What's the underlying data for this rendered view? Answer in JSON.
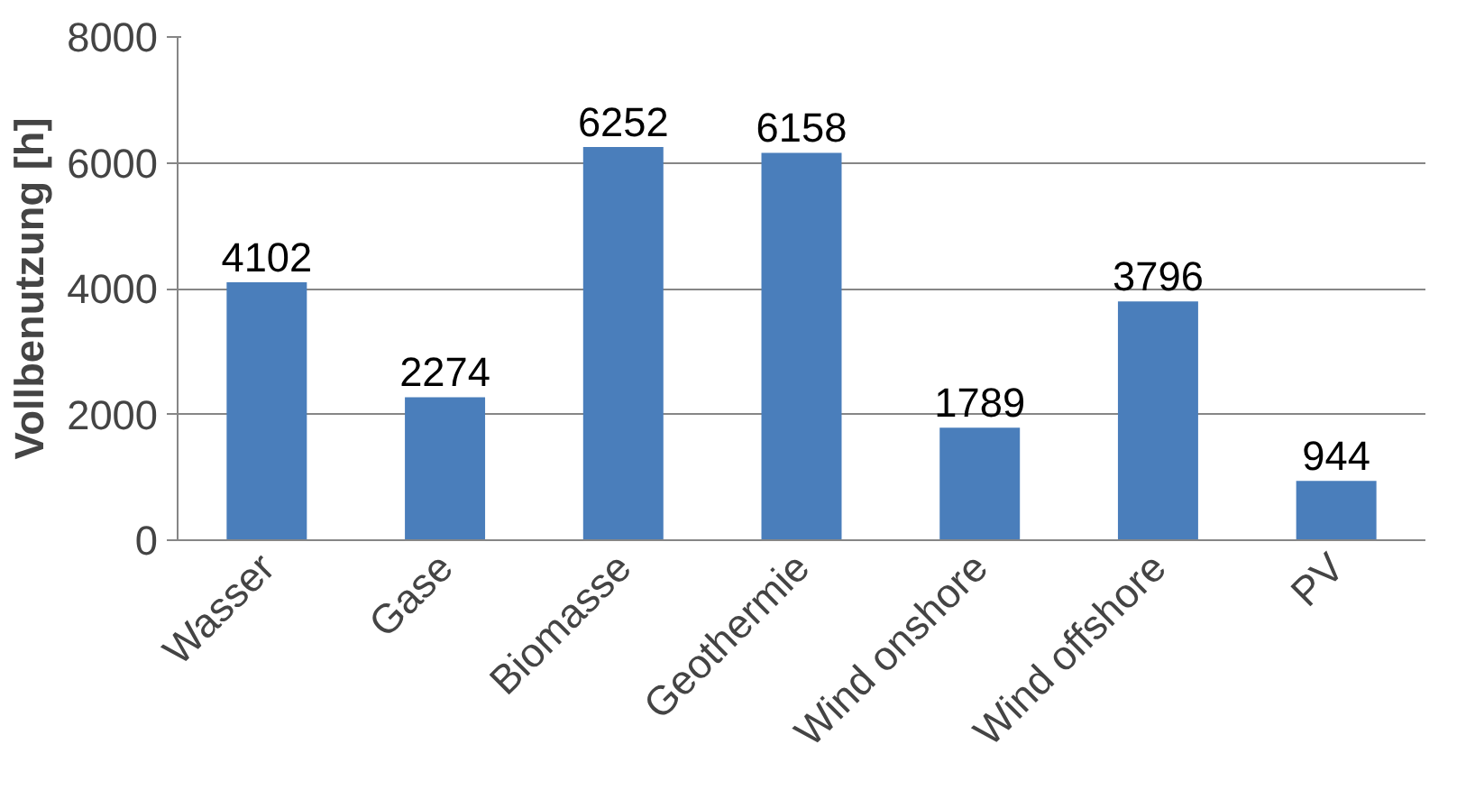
{
  "chart_data": {
    "type": "bar",
    "ylabel": "Vollbenutzung [h]",
    "categories": [
      "Wasser",
      "Gase",
      "Biomasse",
      "Geothermie",
      "Wind onshore",
      "Wind offshore",
      "PV"
    ],
    "values": [
      4102,
      2274,
      6252,
      6158,
      1789,
      3796,
      944
    ],
    "color": "#4a7ebb",
    "ylim": [
      0,
      8000
    ],
    "yticks": [
      0,
      2000,
      4000,
      6000,
      8000
    ],
    "grid": "y",
    "data_labels": true
  }
}
